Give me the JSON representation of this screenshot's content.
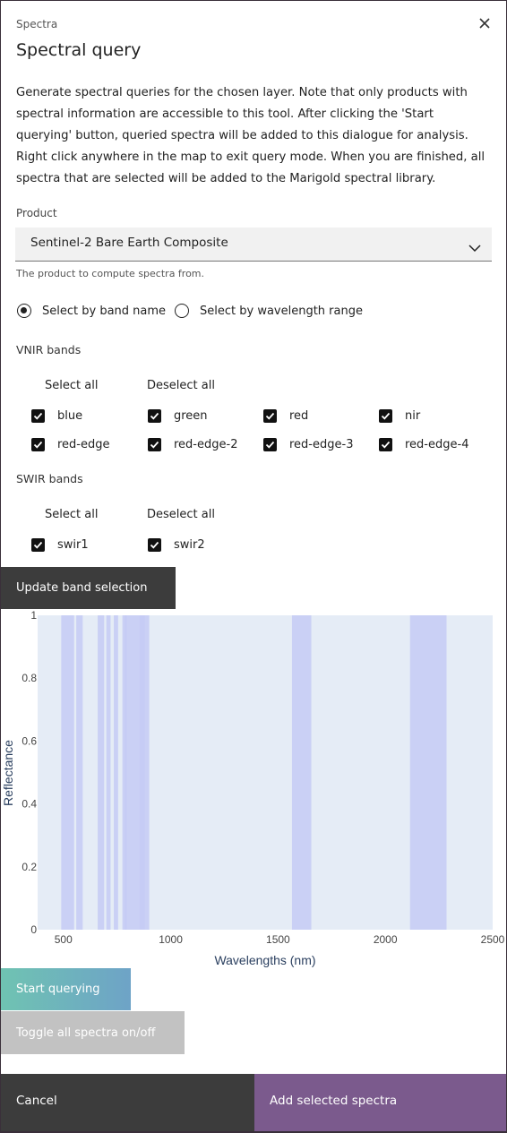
{
  "dialog": {
    "eyebrow": "Spectra",
    "title": "Spectral query",
    "intro": "Generate spectral queries for the chosen layer. Note that only products with spectral information are accessible to this tool. After clicking the 'Start querying' button, queried spectra will be added to this dialogue for analysis. Right click anywhere in the map to exit query mode. When you are finished, all spectra that are selected will be added to the Marigold spectral library.",
    "close_icon": "close-icon"
  },
  "product": {
    "label": "Product",
    "value": "Sentinel-2 Bare Earth Composite",
    "helper": "The product to compute spectra from.",
    "chevron_icon": "chevron-down-icon"
  },
  "selection_mode": {
    "options": [
      {
        "label": "Select by band name",
        "selected": true
      },
      {
        "label": "Select by wavelength range",
        "selected": false
      }
    ]
  },
  "vnir": {
    "label": "VNIR bands",
    "select_all": "Select all",
    "deselect_all": "Deselect all",
    "bands": [
      {
        "name": "blue",
        "checked": true
      },
      {
        "name": "green",
        "checked": true
      },
      {
        "name": "red",
        "checked": true
      },
      {
        "name": "nir",
        "checked": true
      },
      {
        "name": "red-edge",
        "checked": true
      },
      {
        "name": "red-edge-2",
        "checked": true
      },
      {
        "name": "red-edge-3",
        "checked": true
      },
      {
        "name": "red-edge-4",
        "checked": true
      }
    ]
  },
  "swir": {
    "label": "SWIR bands",
    "select_all": "Select all",
    "deselect_all": "Deselect all",
    "bands": [
      {
        "name": "swir1",
        "checked": true
      },
      {
        "name": "swir2",
        "checked": true
      }
    ]
  },
  "buttons": {
    "update": "Update band selection",
    "start": "Start querying",
    "toggle": "Toggle all spectra on/off",
    "cancel": "Cancel",
    "add": "Add selected spectra"
  },
  "chart_data": {
    "type": "area",
    "xlabel": "Wavelengths (nm)",
    "ylabel": "Reflectance",
    "xlim": [
      380,
      2500
    ],
    "ylim": [
      0,
      1
    ],
    "xticks": [
      500,
      1000,
      1500,
      2000,
      2500
    ],
    "yticks": [
      0,
      0.2,
      0.4,
      0.6,
      0.8,
      1
    ],
    "band_ranges": [
      {
        "band": "blue",
        "start": 490,
        "end": 550
      },
      {
        "band": "green",
        "start": 560,
        "end": 590
      },
      {
        "band": "red",
        "start": 660,
        "end": 690
      },
      {
        "band": "red-edge",
        "start": 700,
        "end": 720
      },
      {
        "band": "red-edge-2",
        "start": 735,
        "end": 755
      },
      {
        "band": "red-edge-3",
        "start": 775,
        "end": 795
      },
      {
        "band": "nir",
        "start": 785,
        "end": 900
      },
      {
        "band": "red-edge-4",
        "start": 855,
        "end": 880
      },
      {
        "band": "swir1",
        "start": 1565,
        "end": 1655
      },
      {
        "band": "swir2",
        "start": 2115,
        "end": 2285
      }
    ],
    "colors": {
      "plot_bg": "#e5ecf6",
      "band_fill": "#c5cbf5",
      "axis_title": "#2a3f5f"
    }
  }
}
